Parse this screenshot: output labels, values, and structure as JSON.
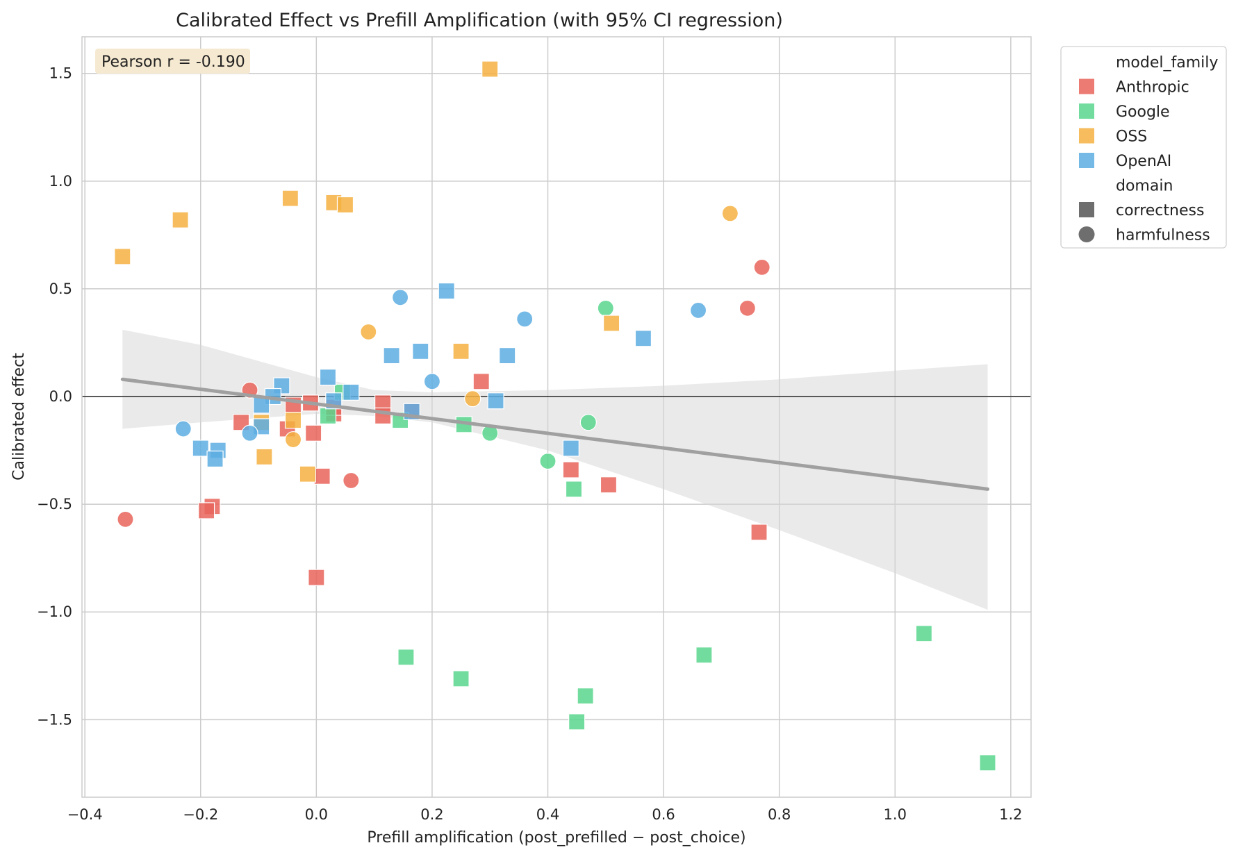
{
  "chart_data": {
    "type": "scatter",
    "title": "Calibrated Effect vs Prefill Amplification (with 95% CI regression)",
    "xlabel": "Prefill amplification (post_prefilled − post_choice)",
    "ylabel": "Calibrated effect",
    "xlim": [
      -0.405,
      1.235
    ],
    "ylim": [
      -1.86,
      1.67
    ],
    "xticks": [
      -0.4,
      -0.2,
      0.0,
      0.2,
      0.4,
      0.6,
      0.8,
      1.0,
      1.2
    ],
    "xtick_labels": [
      "−0.4",
      "−0.2",
      "0.0",
      "0.2",
      "0.4",
      "0.6",
      "0.8",
      "1.0",
      "1.2"
    ],
    "yticks": [
      -1.5,
      -1.0,
      -0.5,
      0.0,
      0.5,
      1.0,
      1.5
    ],
    "ytick_labels": [
      "−1.5",
      "−1.0",
      "−0.5",
      "0.0",
      "0.5",
      "1.0",
      "1.5"
    ],
    "grid": true,
    "zero_line": 0,
    "annotation": "Pearson r = -0.190",
    "legend_position": "outside-right-top",
    "legend": {
      "hue_title": "model_family",
      "style_title": "domain",
      "families": [
        {
          "name": "Anthropic",
          "color": "#e8645a"
        },
        {
          "name": "Google",
          "color": "#58d68d"
        },
        {
          "name": "OSS",
          "color": "#f5b041"
        },
        {
          "name": "OpenAI",
          "color": "#5dade2"
        }
      ],
      "domains": [
        {
          "name": "correctness",
          "marker": "square"
        },
        {
          "name": "harmfulness",
          "marker": "circle"
        }
      ]
    },
    "regression": {
      "x_range": [
        -0.335,
        1.16
      ],
      "line": [
        [
          -0.335,
          0.08
        ],
        [
          1.16,
          -0.43
        ]
      ],
      "ci_upper": [
        [
          -0.335,
          0.31
        ],
        [
          -0.2,
          0.24
        ],
        [
          0.0,
          0.09
        ],
        [
          0.1,
          0.03
        ],
        [
          0.2,
          0.02
        ],
        [
          0.4,
          0.03
        ],
        [
          0.6,
          0.05
        ],
        [
          0.8,
          0.08
        ],
        [
          1.0,
          0.12
        ],
        [
          1.16,
          0.15
        ]
      ],
      "ci_lower": [
        [
          -0.335,
          -0.15
        ],
        [
          -0.2,
          -0.12
        ],
        [
          0.0,
          -0.08
        ],
        [
          0.1,
          -0.09
        ],
        [
          0.2,
          -0.12
        ],
        [
          0.4,
          -0.25
        ],
        [
          0.6,
          -0.43
        ],
        [
          0.8,
          -0.62
        ],
        [
          1.0,
          -0.82
        ],
        [
          1.16,
          -0.99
        ]
      ],
      "line_color": "#a0a0a0",
      "band_color": "#d5d5d5"
    },
    "series": [
      {
        "name": "Anthropic",
        "domain": "correctness",
        "points": [
          [
            -0.18,
            -0.51
          ],
          [
            -0.19,
            -0.53
          ],
          [
            -0.13,
            -0.12
          ],
          [
            -0.05,
            -0.15
          ],
          [
            -0.04,
            -0.04
          ],
          [
            -0.01,
            -0.03
          ],
          [
            0.0,
            -0.84
          ],
          [
            -0.005,
            -0.17
          ],
          [
            0.01,
            -0.37
          ],
          [
            0.03,
            -0.08
          ],
          [
            0.03,
            -0.05
          ],
          [
            0.115,
            -0.03
          ],
          [
            0.115,
            -0.09
          ],
          [
            0.165,
            -0.07
          ],
          [
            0.285,
            0.07
          ],
          [
            0.44,
            -0.34
          ],
          [
            0.505,
            -0.41
          ],
          [
            0.765,
            -0.63
          ]
        ]
      },
      {
        "name": "Anthropic",
        "domain": "harmfulness",
        "points": [
          [
            -0.33,
            -0.57
          ],
          [
            -0.115,
            0.03
          ],
          [
            0.06,
            -0.39
          ],
          [
            0.745,
            0.41
          ],
          [
            0.77,
            0.6
          ]
        ]
      },
      {
        "name": "Google",
        "domain": "correctness",
        "points": [
          [
            1.16,
            -1.7
          ],
          [
            1.05,
            -1.1
          ],
          [
            0.67,
            -1.2
          ],
          [
            0.465,
            -1.39
          ],
          [
            0.45,
            -1.51
          ],
          [
            0.445,
            -0.43
          ],
          [
            0.25,
            -1.31
          ],
          [
            0.155,
            -1.21
          ],
          [
            0.255,
            -0.13
          ],
          [
            0.145,
            -0.11
          ],
          [
            0.02,
            -0.09
          ],
          [
            0.045,
            0.02
          ]
        ]
      },
      {
        "name": "Google",
        "domain": "harmfulness",
        "points": [
          [
            0.5,
            0.41
          ],
          [
            0.47,
            -0.12
          ],
          [
            0.4,
            -0.3
          ],
          [
            0.3,
            -0.17
          ]
        ]
      },
      {
        "name": "OSS",
        "domain": "correctness",
        "points": [
          [
            0.3,
            1.52
          ],
          [
            -0.045,
            0.92
          ],
          [
            0.03,
            0.9
          ],
          [
            0.05,
            0.89
          ],
          [
            -0.235,
            0.82
          ],
          [
            -0.335,
            0.65
          ],
          [
            0.51,
            0.34
          ],
          [
            0.25,
            0.21
          ],
          [
            -0.09,
            -0.28
          ],
          [
            -0.015,
            -0.36
          ],
          [
            -0.04,
            -0.11
          ],
          [
            -0.095,
            -0.12
          ]
        ]
      },
      {
        "name": "OSS",
        "domain": "harmfulness",
        "points": [
          [
            0.715,
            0.85
          ],
          [
            0.09,
            0.3
          ],
          [
            0.27,
            -0.01
          ],
          [
            -0.04,
            -0.2
          ]
        ]
      },
      {
        "name": "OpenAI",
        "domain": "correctness",
        "points": [
          [
            0.225,
            0.49
          ],
          [
            0.565,
            0.27
          ],
          [
            0.18,
            0.21
          ],
          [
            0.13,
            0.19
          ],
          [
            0.33,
            0.19
          ],
          [
            0.02,
            0.09
          ],
          [
            -0.06,
            0.05
          ],
          [
            -0.075,
            0.0
          ],
          [
            -0.095,
            -0.04
          ],
          [
            -0.095,
            -0.14
          ],
          [
            0.06,
            0.02
          ],
          [
            0.03,
            -0.02
          ],
          [
            0.165,
            -0.07
          ],
          [
            0.31,
            -0.02
          ],
          [
            -0.2,
            -0.24
          ],
          [
            -0.17,
            -0.25
          ],
          [
            -0.175,
            -0.29
          ],
          [
            0.44,
            -0.24
          ]
        ]
      },
      {
        "name": "OpenAI",
        "domain": "harmfulness",
        "points": [
          [
            0.145,
            0.46
          ],
          [
            0.36,
            0.36
          ],
          [
            0.66,
            0.4
          ],
          [
            0.2,
            0.07
          ],
          [
            -0.23,
            -0.15
          ],
          [
            -0.115,
            -0.17
          ]
        ]
      }
    ]
  }
}
